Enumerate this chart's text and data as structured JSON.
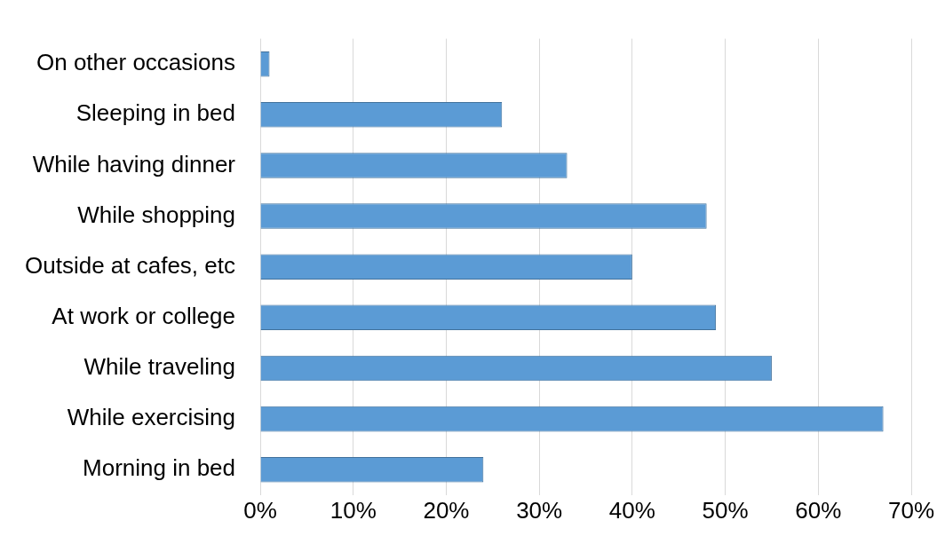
{
  "chart_data": {
    "type": "bar",
    "orientation": "horizontal",
    "categories": [
      "On other occasions",
      "Sleeping in bed",
      "While having dinner",
      "While shopping",
      "Outside at cafes, etc",
      "At work or college",
      "While traveling",
      "While exercising",
      "Morning in bed"
    ],
    "values": [
      1,
      26,
      33,
      48,
      40,
      49,
      55,
      67,
      24
    ],
    "color": "#5b9bd5",
    "xlim": [
      0,
      70
    ],
    "xticks": [
      {
        "value": 0,
        "label": "0%"
      },
      {
        "value": 10,
        "label": "10%"
      },
      {
        "value": 20,
        "label": "20%"
      },
      {
        "value": 30,
        "label": "30%"
      },
      {
        "value": 40,
        "label": "40%"
      },
      {
        "value": 50,
        "label": "50%"
      },
      {
        "value": 60,
        "label": "60%"
      },
      {
        "value": 70,
        "label": "70%"
      }
    ],
    "grid": "x"
  }
}
